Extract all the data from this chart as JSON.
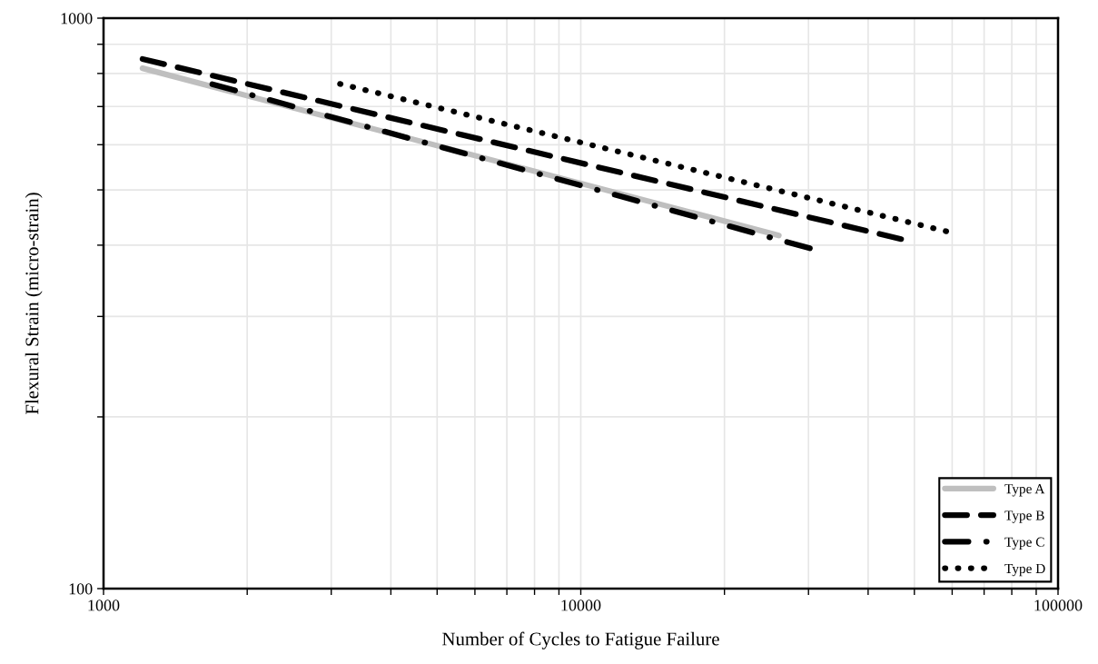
{
  "chart_data": {
    "type": "line",
    "xlabel": "Number of Cycles to Fatigue Failure",
    "ylabel": "Flexural Strain (micro-strain)",
    "log": "xy",
    "xlim": [
      1000,
      100000
    ],
    "ylim": [
      100,
      1000
    ],
    "xticks": [
      1000,
      {
        "value": 2000,
        "label": null
      },
      {
        "value": 3000,
        "label": null
      },
      {
        "value": 4000,
        "label": null
      },
      {
        "value": 5000,
        "label": null
      },
      {
        "value": 6000,
        "label": null
      },
      {
        "value": 7000,
        "label": null
      },
      {
        "value": 8000,
        "label": null
      },
      {
        "value": 9000,
        "label": null
      },
      10000,
      {
        "value": 20000,
        "label": null
      },
      {
        "value": 30000,
        "label": null
      },
      {
        "value": 40000,
        "label": null
      },
      {
        "value": 50000,
        "label": null
      },
      {
        "value": 60000,
        "label": null
      },
      {
        "value": 70000,
        "label": null
      },
      {
        "value": 80000,
        "label": null
      },
      {
        "value": 90000,
        "label": null
      },
      100000
    ],
    "yticks": [
      100,
      {
        "value": 200,
        "label": null
      },
      {
        "value": 300,
        "label": null
      },
      {
        "value": 400,
        "label": null
      },
      {
        "value": 500,
        "label": null
      },
      {
        "value": 600,
        "label": null
      },
      {
        "value": 700,
        "label": null
      },
      {
        "value": 800,
        "label": null
      },
      {
        "value": 900,
        "label": null
      },
      1000
    ],
    "grid": true,
    "legend": "bottom right",
    "series": [
      {
        "name": "Type A",
        "color": "#bfbfbf",
        "line_style": "solid",
        "x": [
          1207,
          26000
        ],
        "values": [
          817,
          416
        ]
      },
      {
        "name": "Type B",
        "color": "#000000",
        "line_style": "dashed",
        "x": [
          1207,
          46900
        ],
        "values": [
          848,
          410
        ]
      },
      {
        "name": "Type C",
        "color": "#000000",
        "line_style": "dashdot",
        "x": [
          1690,
          30200
        ],
        "values": [
          766,
          395
        ]
      },
      {
        "name": "Type D",
        "color": "#000000",
        "line_style": "dotted",
        "x": [
          3130,
          58300
        ],
        "values": [
          767,
          423
        ]
      }
    ]
  }
}
